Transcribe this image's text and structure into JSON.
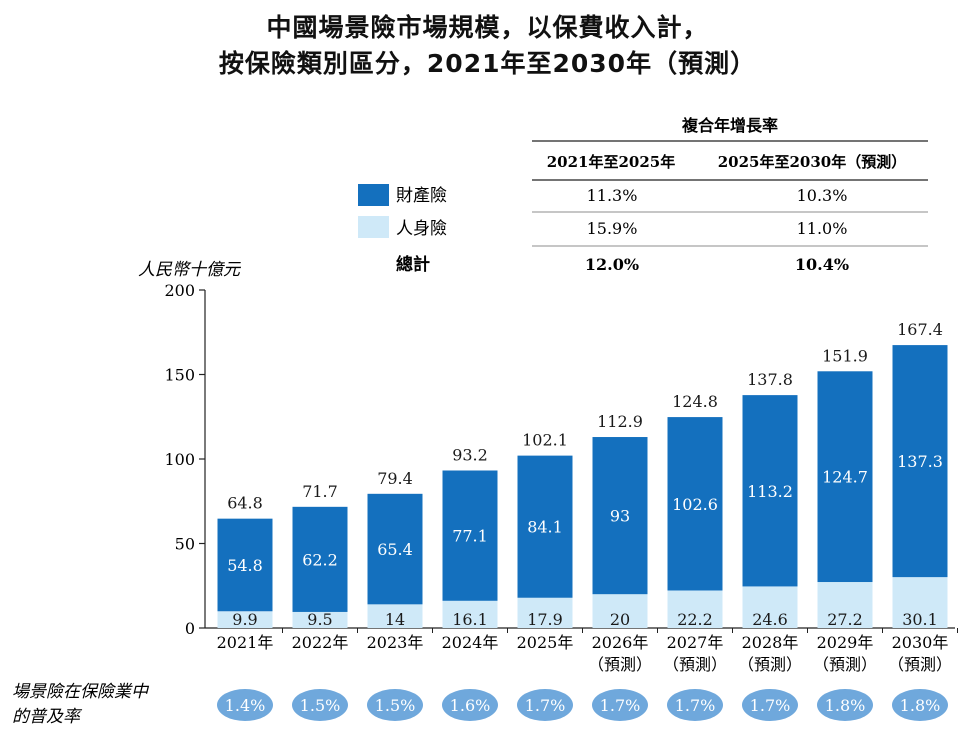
{
  "title": {
    "line1": "中國場景險市場規模，以保費收入計，",
    "line2": "按保險類別區分，2021年至2030年（預測）"
  },
  "cagr_table": {
    "header": "複合年增長率",
    "col1": "2021年至2025年",
    "col2": "2025年至2030年（預測）",
    "rows": [
      {
        "label": "財產險",
        "v1": "11.3%",
        "v2": "10.3%"
      },
      {
        "label": "人身險",
        "v1": "15.9%",
        "v2": "11.0%"
      },
      {
        "label": "總計",
        "v1": "12.0%",
        "v2": "10.4%"
      }
    ]
  },
  "penetration": {
    "label_line1": "場景險在保險業中",
    "label_line2": "的普及率",
    "values": [
      "1.4%",
      "1.5%",
      "1.5%",
      "1.6%",
      "1.7%",
      "1.7%",
      "1.7%",
      "1.7%",
      "1.8%",
      "1.8%"
    ]
  },
  "colors": {
    "property": "#1470be",
    "life": "#cfe9f8",
    "pill": "#6fa8dc"
  },
  "chart_data": {
    "type": "bar",
    "stacked": true,
    "ylabel": "人民幣十億元",
    "ylim": [
      0,
      200
    ],
    "yticks": [
      0,
      50,
      100,
      150,
      200
    ],
    "categories": [
      "2021年",
      "2022年",
      "2023年",
      "2024年",
      "2025年",
      "2026年",
      "2027年",
      "2028年",
      "2029年",
      "2030年"
    ],
    "category_sublabels": [
      "",
      "",
      "",
      "",
      "",
      "（預測）",
      "（預測）",
      "（預測）",
      "（預測）",
      "（預測）"
    ],
    "series": [
      {
        "name": "人身險",
        "values": [
          9.9,
          9.5,
          14.0,
          16.1,
          17.9,
          20.0,
          22.2,
          24.6,
          27.2,
          30.1
        ]
      },
      {
        "name": "財產險",
        "values": [
          54.8,
          62.2,
          65.4,
          77.1,
          84.1,
          93.0,
          102.6,
          113.2,
          124.7,
          137.3
        ]
      }
    ],
    "totals": [
      64.8,
      71.7,
      79.4,
      93.2,
      102.1,
      112.9,
      124.8,
      137.8,
      151.9,
      167.4
    ]
  }
}
